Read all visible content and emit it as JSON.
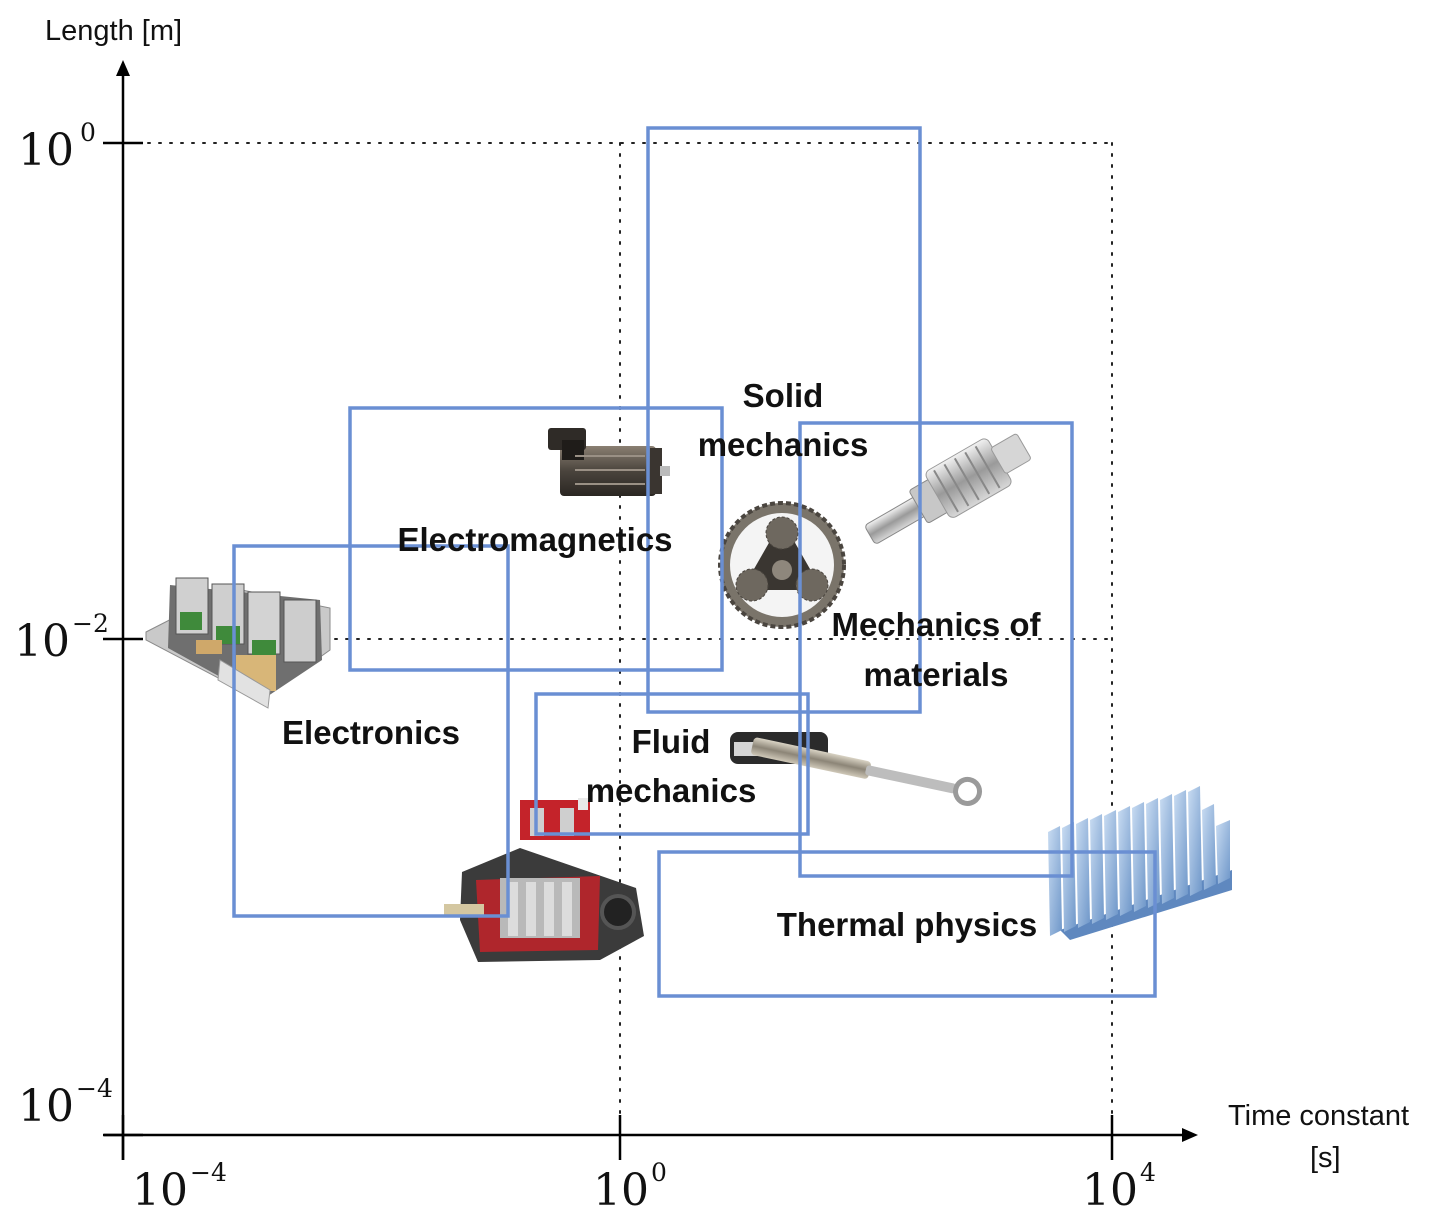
{
  "x_axis": {
    "title_line1": "Time constant",
    "title_line2": "[s]",
    "ticks": [
      {
        "base": "10",
        "exp": "−4"
      },
      {
        "base": "10",
        "exp": "0"
      },
      {
        "base": "10",
        "exp": "4"
      }
    ]
  },
  "y_axis": {
    "title": "Length [m]",
    "ticks": [
      {
        "base": "10",
        "exp": "0"
      },
      {
        "base": "10",
        "exp": "−2"
      },
      {
        "base": "10",
        "exp": "−4"
      }
    ]
  },
  "regions": [
    {
      "id": "electronics",
      "label_lines": [
        "Electronics"
      ]
    },
    {
      "id": "electromagnetics",
      "label_lines": [
        "Electromagnetics"
      ]
    },
    {
      "id": "solid-mechanics",
      "label_lines": [
        "Solid",
        "mechanics"
      ]
    },
    {
      "id": "mechanics-of-materials",
      "label_lines": [
        "Mechanics of",
        "materials"
      ]
    },
    {
      "id": "fluid-mechanics",
      "label_lines": [
        "Fluid",
        "mechanics"
      ]
    },
    {
      "id": "thermal-physics",
      "label_lines": [
        "Thermal physics"
      ]
    }
  ],
  "pictures": [
    {
      "id": "power-electronics-modules-image",
      "depicts": "power electronics modules"
    },
    {
      "id": "servo-motor-image",
      "depicts": "servo motor"
    },
    {
      "id": "planetary-gear-image",
      "depicts": "planetary gear"
    },
    {
      "id": "ball-screw-image",
      "depicts": "ball screw"
    },
    {
      "id": "hydraulic-pump-image",
      "depicts": "hydraulic pump cutaway"
    },
    {
      "id": "linear-actuator-image",
      "depicts": "electric linear actuator"
    },
    {
      "id": "heat-sink-image",
      "depicts": "finned heat sink"
    }
  ],
  "colors": {
    "region_outline": "#6a8fd3",
    "axis": "#000000"
  }
}
